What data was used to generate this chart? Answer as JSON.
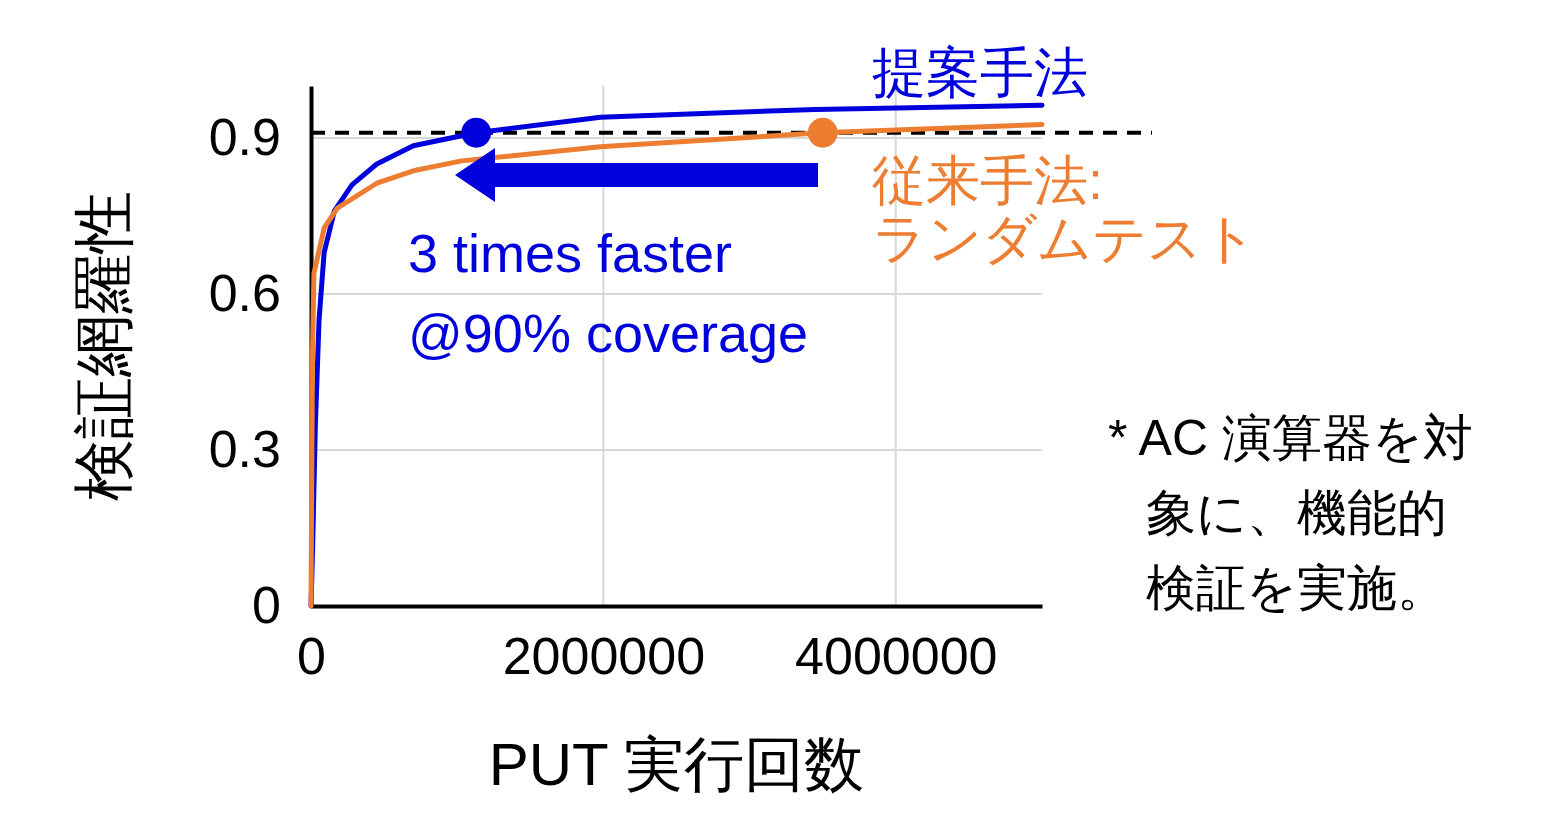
{
  "chart_data": {
    "type": "line",
    "xlabel": "PUT 実行回数",
    "ylabel": "検証網羅性",
    "xlim": [
      0,
      5000000
    ],
    "xticks": [
      0,
      2000000,
      4000000
    ],
    "ylim": [
      0,
      1
    ],
    "yticks": [
      0,
      0.3,
      0.6,
      0.9
    ],
    "grid": true,
    "marker": "none",
    "line_style": "solid",
    "series": [
      {
        "name": "提案手法",
        "color": "#0000dd",
        "x": [
          0,
          10000,
          30000,
          55000,
          90000,
          160000,
          280000,
          450000,
          700000,
          1130000,
          1980000,
          3450000,
          5000000
        ],
        "values": [
          0,
          0.1,
          0.35,
          0.55,
          0.68,
          0.76,
          0.81,
          0.85,
          0.885,
          0.91,
          0.94,
          0.955,
          0.963
        ]
      },
      {
        "name": "従来手法:\nランダムテスト",
        "color": "#ed7d31",
        "x": [
          0,
          10000,
          20000,
          90000,
          180000,
          450000,
          700000,
          1030000,
          1980000,
          3490000,
          5000000
        ],
        "values": [
          0,
          0.48,
          0.64,
          0.727,
          0.765,
          0.813,
          0.837,
          0.856,
          0.883,
          0.91,
          0.926
        ]
      },
      {
        "type": "scatter",
        "marker": "circle",
        "color": "#0000dd",
        "x": [
          1130000
        ],
        "values": [
          0.91
        ]
      },
      {
        "type": "scatter",
        "marker": "circle",
        "color": "#ed7d31",
        "x": [
          3500000
        ],
        "values": [
          0.91
        ]
      }
    ],
    "ref_lines": [
      {
        "axis": "y",
        "value": 0.91,
        "color": "#000000",
        "line_style": "dashed"
      }
    ],
    "annotations": [
      "3 times faster\n@90% coverage",
      "* AC 演算器を対象に、機能的検証を実施。"
    ]
  }
}
